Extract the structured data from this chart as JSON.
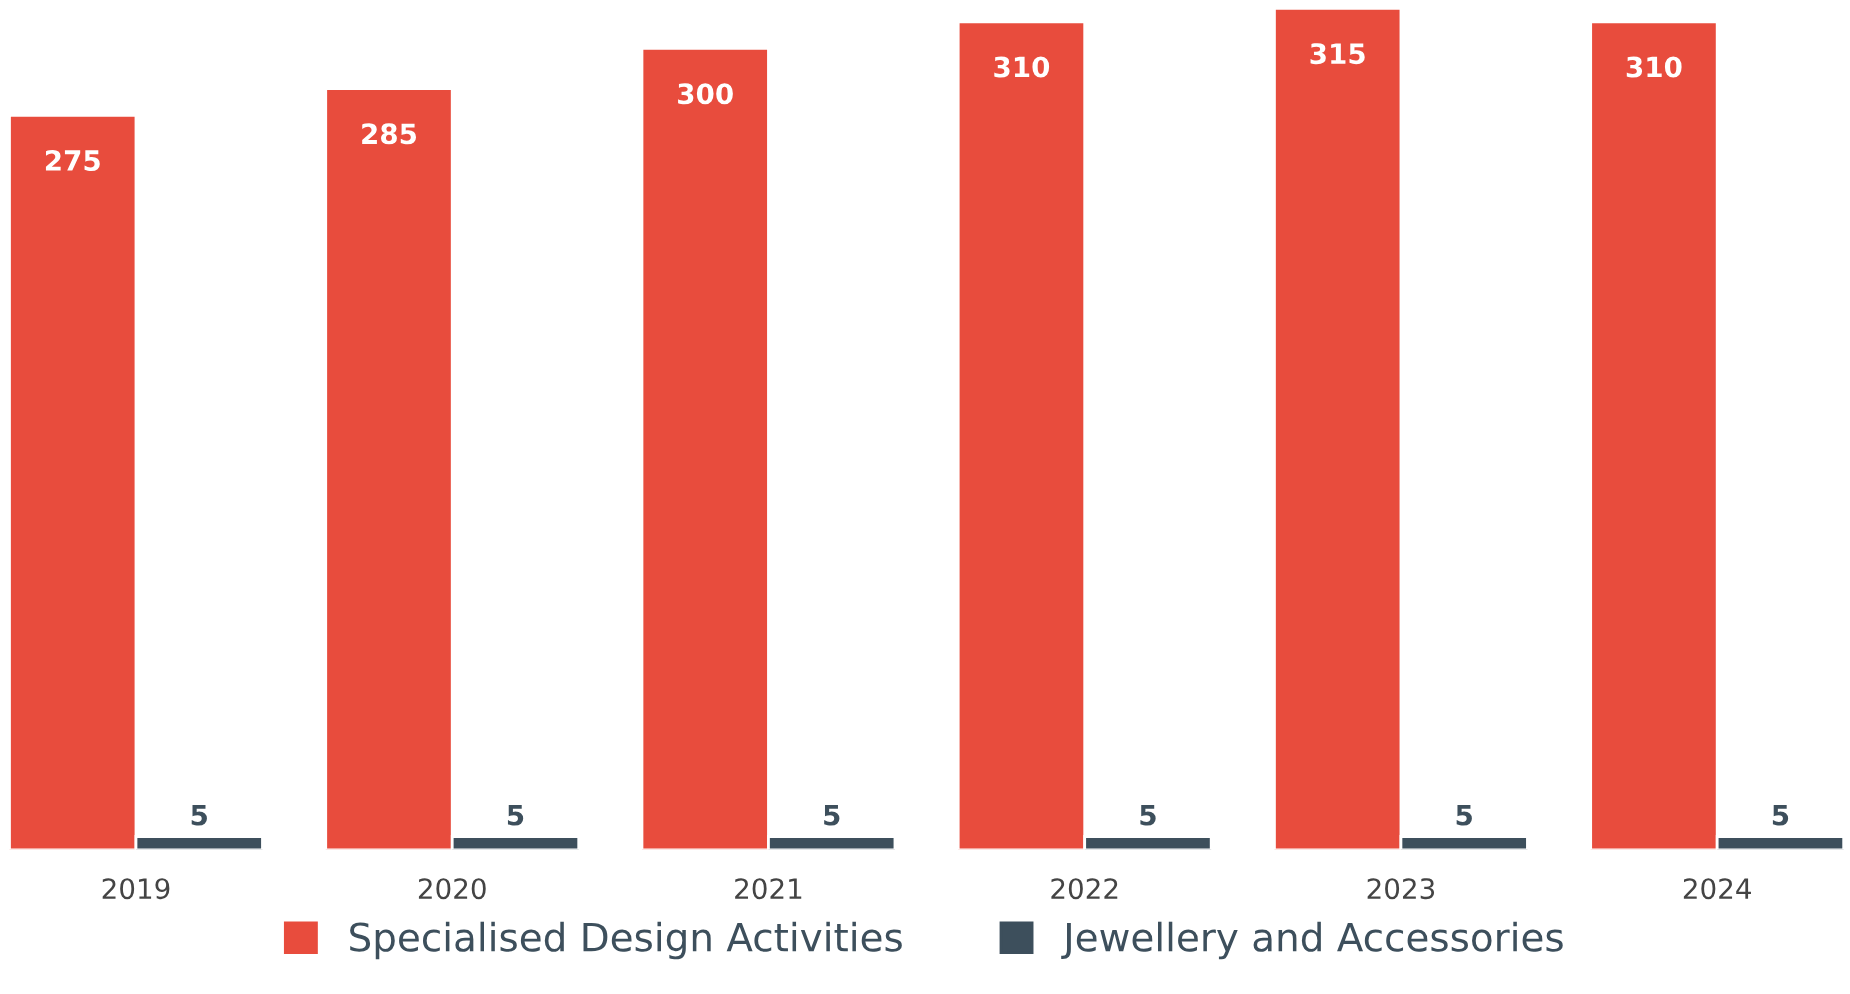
{
  "chart_data": {
    "type": "bar",
    "categories": [
      "2019",
      "2020",
      "2021",
      "2022",
      "2023",
      "2024"
    ],
    "series": [
      {
        "name": "Specialised Design Activities",
        "color": "#e84c3d",
        "values": [
          275,
          285,
          300,
          310,
          315,
          310
        ]
      },
      {
        "name": "Jewellery and Accessories",
        "color": "#3d4f5c",
        "values": [
          5,
          5,
          5,
          5,
          5,
          5
        ]
      }
    ],
    "data_labels": true,
    "legend": "bottom",
    "grid": false,
    "tick_labels": "x"
  }
}
